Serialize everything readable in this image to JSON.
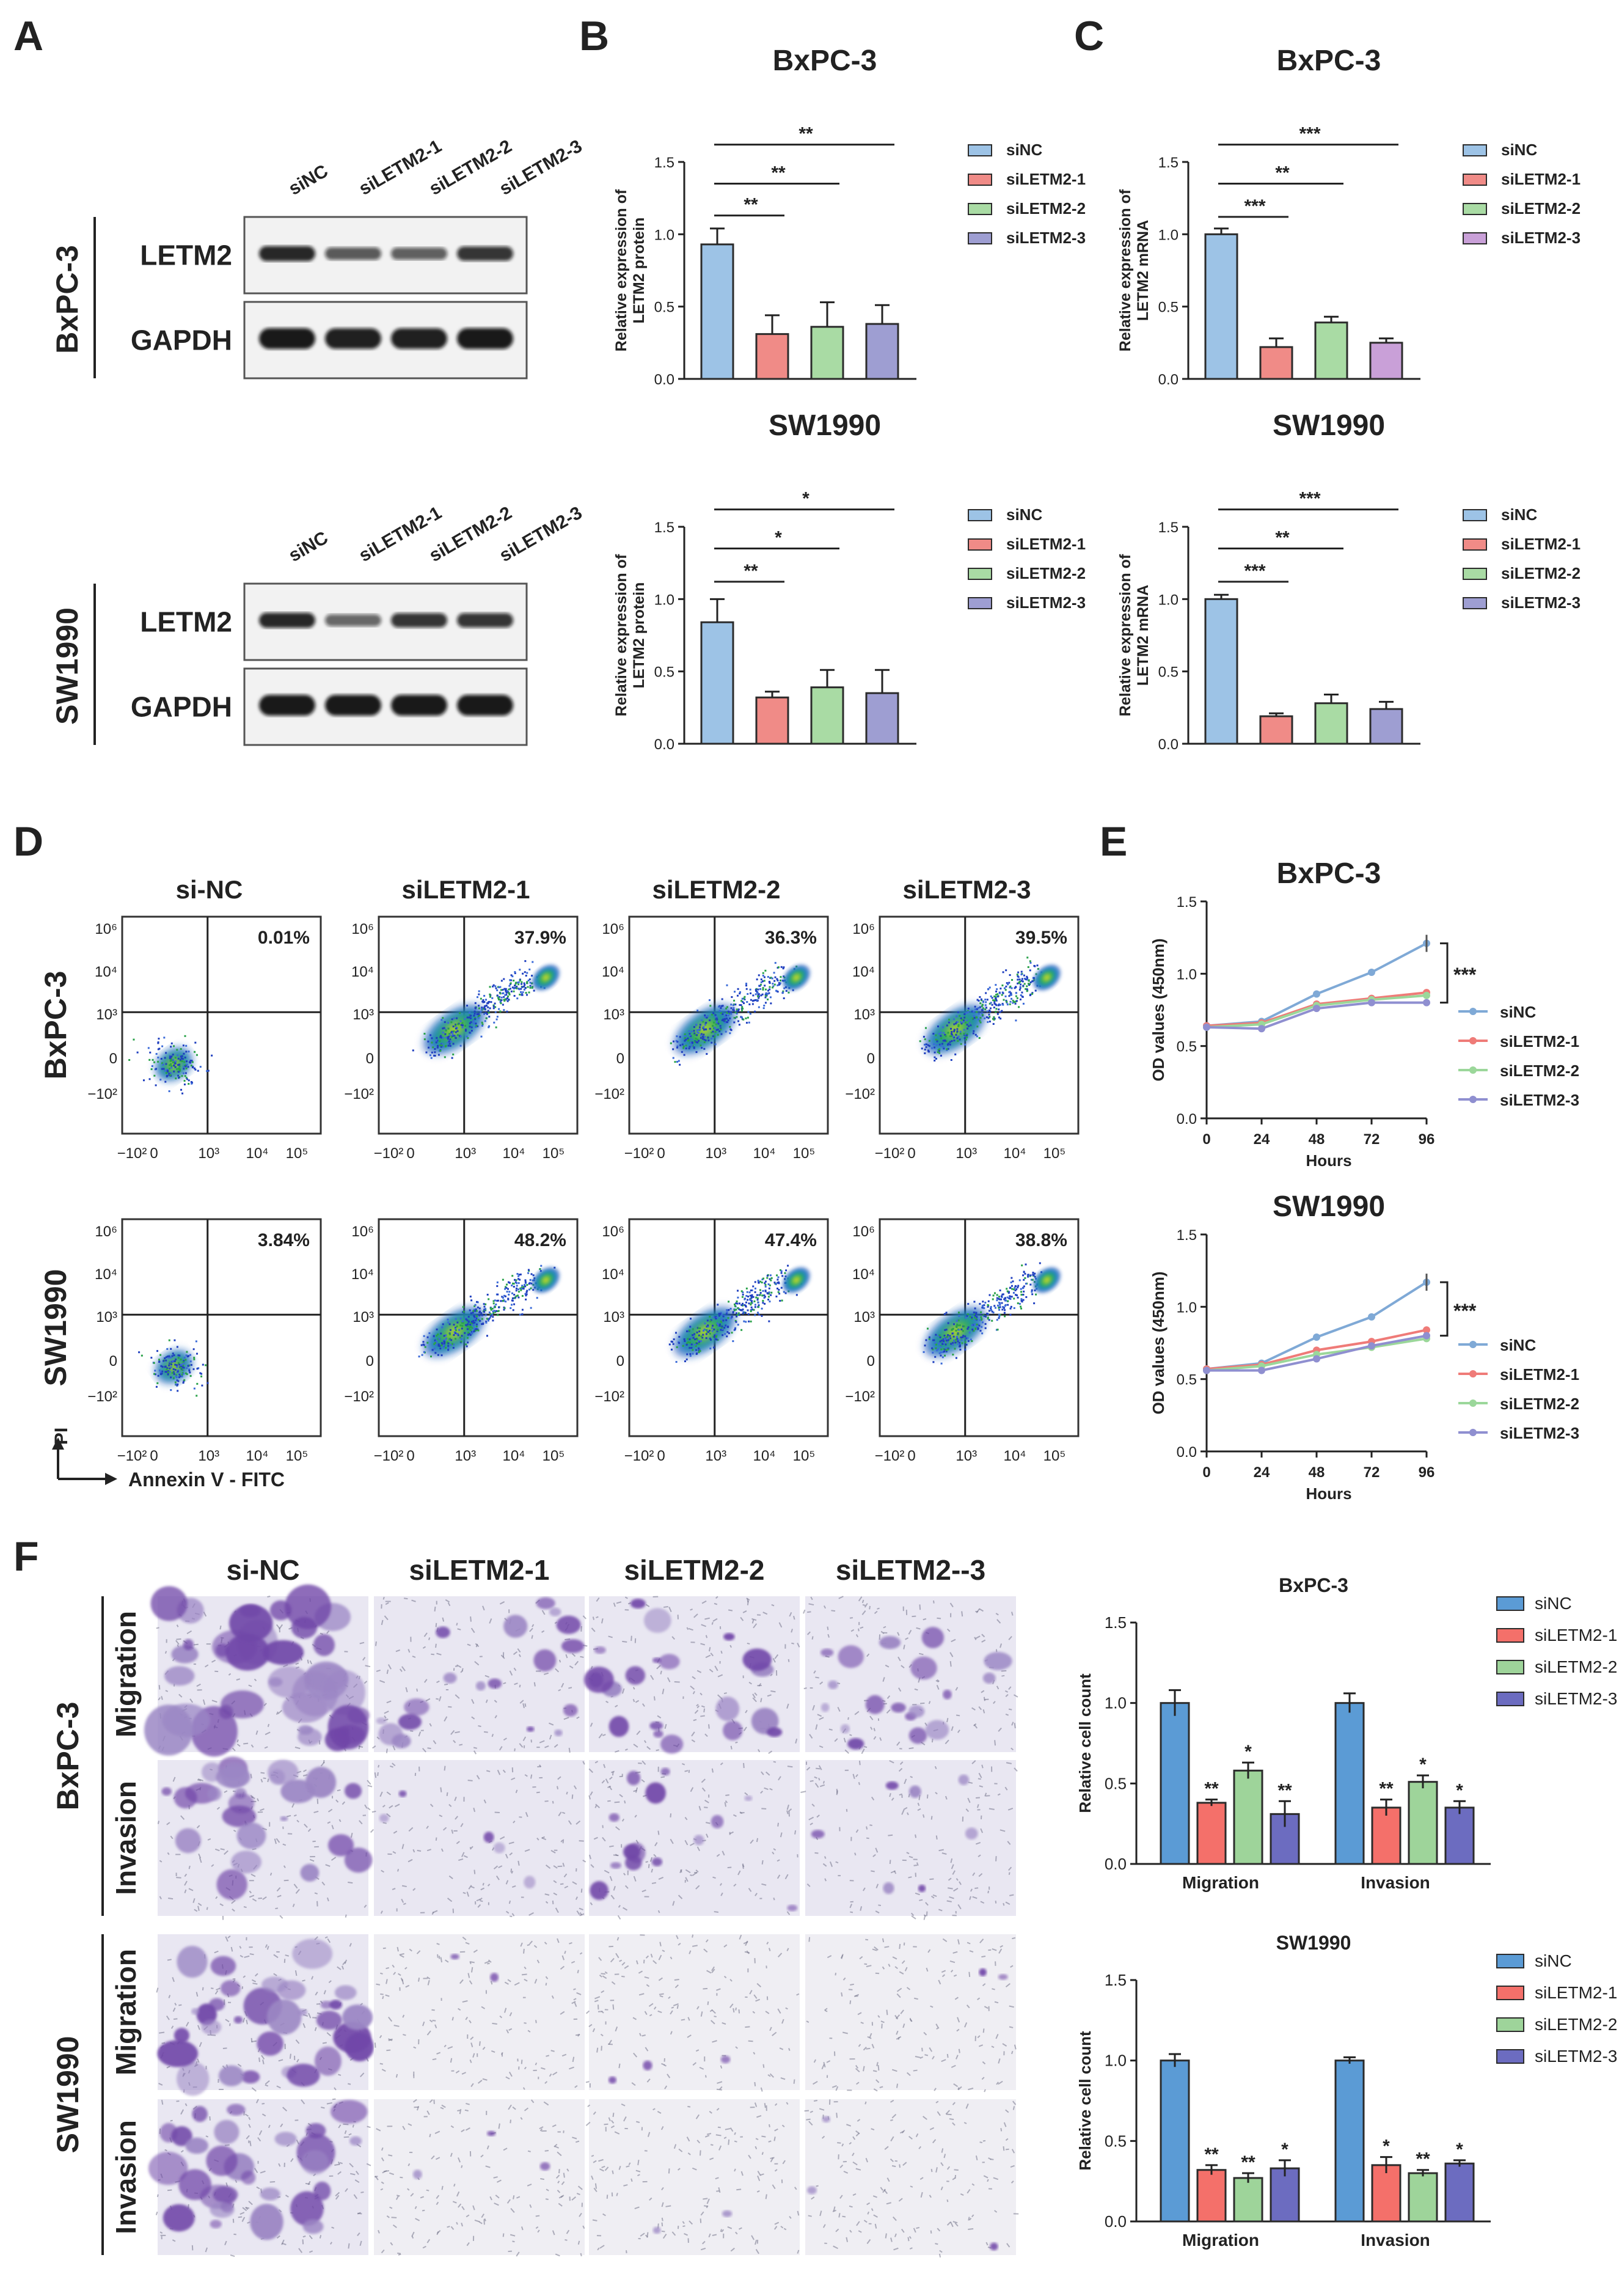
{
  "panel_letters": {
    "a": "A",
    "b": "B",
    "c": "C",
    "d": "D",
    "e": "E",
    "f": "F"
  },
  "western_blot": {
    "cell_lines": [
      "BxPC-3",
      "SW1990"
    ],
    "lanes": [
      [
        "siNC",
        "siLETM2-1",
        "siLETM2-2",
        "siLETM2-3"
      ],
      [
        "siNC",
        "siLETM2-1",
        "siLETM2-2",
        "siLETM2-3"
      ]
    ],
    "bands": [
      "LETM2",
      "GAPDH"
    ],
    "intensity": {
      "letm2": [
        [
          0.9,
          0.55,
          0.5,
          0.8
        ],
        [
          0.9,
          0.45,
          0.8,
          0.8
        ]
      ],
      "gapdh": [
        [
          1,
          0.95,
          0.95,
          1
        ],
        [
          1,
          1,
          1,
          1
        ]
      ]
    }
  },
  "colors": {
    "siNC": "#9dc3e6",
    "siLETM2-1": "#f08b87",
    "siLETM2-2": "#a9dba4",
    "siLETM2-3": "#9e9ed2",
    "siLETM2-3_purple": "#c9a0d8",
    "edge": "#2b2b2b",
    "ln_nc": "#7fa9d6",
    "ln_1": "#ef7b78",
    "ln_2": "#9bd79a",
    "ln_3": "#8f8fd0",
    "f_nc": "#5b9bd5",
    "f_1": "#f4706a",
    "f_2": "#9ed49a",
    "f_3": "#6c6cc0",
    "stain_heavy": "#7046a8",
    "stain_light": "#9b86c4",
    "stain_bg": "#e9e7f2",
    "stain_bg2": "#efeef3"
  },
  "chart_data": [
    {
      "id": "b_bxpc3",
      "type": "bar",
      "title": "BxPC-3",
      "ylabel": [
        "Relative expression of",
        "LETM2 protein"
      ],
      "ylim": [
        0,
        1.5
      ],
      "ticks": [
        "0.0",
        "0.5",
        "1.0",
        "1.5"
      ],
      "categories": [
        "siNC",
        "siLETM2-1",
        "siLETM2-2",
        "siLETM2-3"
      ],
      "values": [
        0.93,
        0.31,
        0.36,
        0.38
      ],
      "errors": [
        0.11,
        0.13,
        0.17,
        0.13
      ],
      "significance": [
        {
          "label": "**",
          "from": 0,
          "to": 1,
          "level": 1.13
        },
        {
          "label": "**",
          "from": 0,
          "to": 2,
          "level": 1.35
        },
        {
          "label": "**",
          "from": 0,
          "to": 3,
          "level": 1.62
        }
      ]
    },
    {
      "id": "c_bxpc3",
      "type": "bar",
      "title": "BxPC-3",
      "ylabel": [
        "Relative expression of",
        "LETM2 mRNA"
      ],
      "ylim": [
        0,
        1.5
      ],
      "ticks": [
        "0.0",
        "0.5",
        "1.0",
        "1.5"
      ],
      "categories": [
        "siNC",
        "siLETM2-1",
        "siLETM2-2",
        "siLETM2-3"
      ],
      "values": [
        1.0,
        0.22,
        0.39,
        0.25
      ],
      "errors": [
        0.04,
        0.06,
        0.04,
        0.03
      ],
      "significance": [
        {
          "label": "***",
          "from": 0,
          "to": 1,
          "level": 1.12
        },
        {
          "label": "**",
          "from": 0,
          "to": 2,
          "level": 1.35
        },
        {
          "label": "***",
          "from": 0,
          "to": 3,
          "level": 1.62
        }
      ]
    },
    {
      "id": "b_sw1990",
      "type": "bar",
      "title": "SW1990",
      "ylabel": [
        "Relative expression of",
        "LETM2 protein"
      ],
      "ylim": [
        0,
        1.5
      ],
      "ticks": [
        "0.0",
        "0.5",
        "1.0",
        "1.5"
      ],
      "categories": [
        "siNC",
        "siLETM2-1",
        "siLETM2-2",
        "siLETM2-3"
      ],
      "values": [
        0.84,
        0.32,
        0.39,
        0.35
      ],
      "errors": [
        0.16,
        0.04,
        0.12,
        0.16
      ],
      "significance": [
        {
          "label": "**",
          "from": 0,
          "to": 1,
          "level": 1.12
        },
        {
          "label": "*",
          "from": 0,
          "to": 2,
          "level": 1.35
        },
        {
          "label": "*",
          "from": 0,
          "to": 3,
          "level": 1.62
        }
      ]
    },
    {
      "id": "c_sw1990",
      "type": "bar",
      "title": "SW1990",
      "ylabel": [
        "Relative expression of",
        "LETM2 mRNA"
      ],
      "ylim": [
        0,
        1.5
      ],
      "ticks": [
        "0.0",
        "0.5",
        "1.0",
        "1.5"
      ],
      "categories": [
        "siNC",
        "siLETM2-1",
        "siLETM2-2",
        "siLETM2-3"
      ],
      "values": [
        1.0,
        0.19,
        0.28,
        0.24
      ],
      "errors": [
        0.03,
        0.02,
        0.06,
        0.05
      ],
      "significance": [
        {
          "label": "***",
          "from": 0,
          "to": 1,
          "level": 1.12
        },
        {
          "label": "**",
          "from": 0,
          "to": 2,
          "level": 1.35
        },
        {
          "label": "***",
          "from": 0,
          "to": 3,
          "level": 1.62
        }
      ]
    },
    {
      "id": "e_bxpc3",
      "type": "line",
      "title": "BxPC-3",
      "xlabel": "Hours",
      "ylabel": "OD values (450nm)",
      "x": [
        0,
        24,
        48,
        72,
        96
      ],
      "ylim": [
        0,
        1.5
      ],
      "yticks": [
        "0.0",
        "0.5",
        "1.0",
        "1.5"
      ],
      "xticks": [
        "0",
        "24",
        "48",
        "72",
        "96"
      ],
      "series": [
        {
          "name": "siNC",
          "values": [
            0.64,
            0.67,
            0.86,
            1.01,
            1.21
          ]
        },
        {
          "name": "siLETM2-1",
          "values": [
            0.64,
            0.66,
            0.79,
            0.83,
            0.87
          ]
        },
        {
          "name": "siLETM2-2",
          "values": [
            0.63,
            0.65,
            0.78,
            0.82,
            0.85
          ]
        },
        {
          "name": "siLETM2-3",
          "values": [
            0.63,
            0.62,
            0.76,
            0.8,
            0.8
          ]
        }
      ],
      "significance": "***"
    },
    {
      "id": "e_sw1990",
      "type": "line",
      "title": "SW1990",
      "xlabel": "Hours",
      "ylabel": "OD values (450nm)",
      "x": [
        0,
        24,
        48,
        72,
        96
      ],
      "ylim": [
        0,
        1.5
      ],
      "yticks": [
        "0.0",
        "0.5",
        "1.0",
        "1.5"
      ],
      "xticks": [
        "0",
        "24",
        "48",
        "72",
        "96"
      ],
      "series": [
        {
          "name": "siNC",
          "values": [
            0.57,
            0.61,
            0.79,
            0.93,
            1.17
          ]
        },
        {
          "name": "siLETM2-1",
          "values": [
            0.57,
            0.6,
            0.7,
            0.76,
            0.84
          ]
        },
        {
          "name": "siLETM2-2",
          "values": [
            0.56,
            0.59,
            0.67,
            0.72,
            0.78
          ]
        },
        {
          "name": "siLETM2-3",
          "values": [
            0.56,
            0.56,
            0.64,
            0.73,
            0.8
          ]
        }
      ],
      "significance": "***"
    },
    {
      "id": "f_bxpc3",
      "type": "bar",
      "title": "BxPC-3",
      "ylabel": "Relative cell count",
      "ylim": [
        0,
        1.5
      ],
      "ticks": [
        "0.0",
        "0.5",
        "1.0",
        "1.5"
      ],
      "categories": [
        "Migration",
        "Invasion"
      ],
      "series": [
        {
          "name": "siNC",
          "values": [
            1.0,
            1.0
          ],
          "errors": [
            0.08,
            0.06
          ],
          "stars": [
            "",
            ""
          ]
        },
        {
          "name": "siLETM2-1",
          "values": [
            0.38,
            0.35
          ],
          "errors": [
            0.02,
            0.05
          ],
          "stars": [
            "**",
            "**"
          ]
        },
        {
          "name": "siLETM2-2",
          "values": [
            0.58,
            0.51
          ],
          "errors": [
            0.05,
            0.04
          ],
          "stars": [
            "*",
            "*"
          ]
        },
        {
          "name": "siLETM2-3",
          "values": [
            0.31,
            0.35
          ],
          "errors": [
            0.08,
            0.04
          ],
          "stars": [
            "**",
            "*"
          ]
        }
      ]
    },
    {
      "id": "f_sw1990",
      "type": "bar",
      "title": "SW1990",
      "ylabel": "Relative cell count",
      "ylim": [
        0,
        1.5
      ],
      "ticks": [
        "0.0",
        "0.5",
        "1.0",
        "1.5"
      ],
      "categories": [
        "Migration",
        "Invasion"
      ],
      "series": [
        {
          "name": "siNC",
          "values": [
            1.0,
            1.0
          ],
          "errors": [
            0.04,
            0.02
          ],
          "stars": [
            "",
            ""
          ]
        },
        {
          "name": "siLETM2-1",
          "values": [
            0.32,
            0.35
          ],
          "errors": [
            0.03,
            0.05
          ],
          "stars": [
            "**",
            "*"
          ]
        },
        {
          "name": "siLETM2-2",
          "values": [
            0.27,
            0.3
          ],
          "errors": [
            0.03,
            0.02
          ],
          "stars": [
            "**",
            "**"
          ]
        },
        {
          "name": "siLETM2-3",
          "values": [
            0.33,
            0.36
          ],
          "errors": [
            0.05,
            0.02
          ],
          "stars": [
            "*",
            "*"
          ]
        }
      ]
    }
  ],
  "flow": {
    "columns": [
      "si-NC",
      "siLETM2-1",
      "siLETM2-2",
      "siLETM2-3"
    ],
    "rows": [
      "BxPC-3",
      "SW1990"
    ],
    "percents": [
      [
        "0.01%",
        "37.9%",
        "36.3%",
        "39.5%"
      ],
      [
        "3.84%",
        "48.2%",
        "47.4%",
        "38.8%"
      ]
    ],
    "yticks": [
      "10⁶",
      "10⁴",
      "10³",
      "0",
      "−10²"
    ],
    "xticks": [
      "−10²",
      "0",
      "10³",
      "10⁴",
      "10⁵"
    ],
    "axis_pi": "PI",
    "axis_annexin": "Annexin V - FITC"
  },
  "transwell": {
    "columns": [
      "si-NC",
      "siLETM2-1",
      "siLETM2-2",
      "siLETM2--3"
    ],
    "rows": [
      "BxPC-3",
      "SW1990"
    ],
    "assays": [
      "Migration",
      "Invasion"
    ],
    "density": [
      [
        [
          0.9,
          0.45,
          0.5,
          0.45
        ],
        [
          0.6,
          0.12,
          0.35,
          0.18
        ]
      ],
      [
        [
          0.75,
          0.05,
          0.08,
          0.06
        ],
        [
          0.7,
          0.08,
          0.06,
          0.07
        ]
      ]
    ]
  }
}
